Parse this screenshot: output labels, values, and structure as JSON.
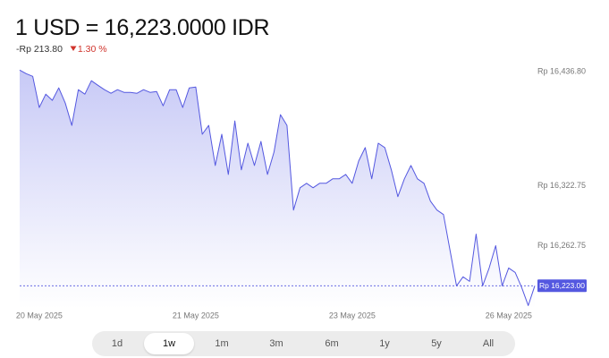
{
  "chart_data": {
    "type": "line",
    "title": "1 USD = 16,223.0000 IDR",
    "change_label": "-Rp 213.80",
    "change_pct_label": "1.30 %",
    "categories": [
      null,
      null,
      null,
      "20 May 2025",
      null,
      null,
      null,
      null,
      null,
      null,
      null,
      null,
      null,
      null,
      null,
      null,
      null,
      null,
      null,
      null,
      null,
      null,
      null,
      null,
      null,
      null,
      null,
      "21 May 2025",
      null,
      null,
      null,
      null,
      null,
      null,
      null,
      null,
      null,
      null,
      null,
      null,
      null,
      null,
      null,
      null,
      null,
      null,
      null,
      null,
      null,
      null,
      null,
      "23 May 2025",
      null,
      null,
      null,
      null,
      null,
      null,
      null,
      null,
      null,
      null,
      null,
      null,
      null,
      null,
      null,
      null,
      null,
      null,
      null,
      null,
      null,
      null,
      null,
      "26 May 2025",
      null,
      null,
      null,
      null
    ],
    "series": [
      {
        "color": "#5458e0",
        "values": [
          16438.6,
          16435.0,
          16432.3,
          16401.2,
          16414.5,
          16408.3,
          16420.8,
          16405.6,
          16383.3,
          16419.0,
          16414.5,
          16427.9,
          16423.4,
          16419.0,
          16415.4,
          16419.0,
          16416.3,
          16416.3,
          16415.4,
          16419.0,
          16416.3,
          16417.2,
          16402.9,
          16419.0,
          16419.0,
          16401.2,
          16420.8,
          16421.7,
          16374.4,
          16383.3,
          16343.2,
          16374.4,
          16334.3,
          16387.8,
          16338.8,
          16365.5,
          16343.2,
          16367.3,
          16334.3,
          16356.6,
          16394.0,
          16383.3,
          16298.7,
          16320.9,
          16325.4,
          16320.9,
          16325.4,
          16325.4,
          16329.9,
          16329.9,
          16334.3,
          16325.4,
          16347.7,
          16361.1,
          16329.9,
          16365.5,
          16361.1,
          16338.8,
          16312.1,
          16329.9,
          16343.2,
          16329.9,
          16325.4,
          16307.6,
          16298.7,
          16294.2,
          16258.6,
          16222.9,
          16231.9,
          16227.4,
          16274.6,
          16222.9,
          16240.8,
          16263.1,
          16222.9,
          16240.8,
          16236.3,
          16221.2,
          16203.2,
          16223.0
        ]
      }
    ],
    "ylim": [
      16200,
      16446
    ],
    "yticks": [
      {
        "value": 16436.8,
        "label": "Rp 16,436.80"
      },
      {
        "value": 16322.75,
        "label": "Rp 16,322.75"
      },
      {
        "value": 16262.75,
        "label": "Rp 16,262.75"
      }
    ],
    "price_line": {
      "value": 16223.0,
      "label": "Rp 16,223.00"
    },
    "ranges": [
      "1d",
      "1w",
      "1m",
      "3m",
      "6m",
      "1y",
      "5y",
      "All"
    ],
    "selected_range": "1w"
  }
}
